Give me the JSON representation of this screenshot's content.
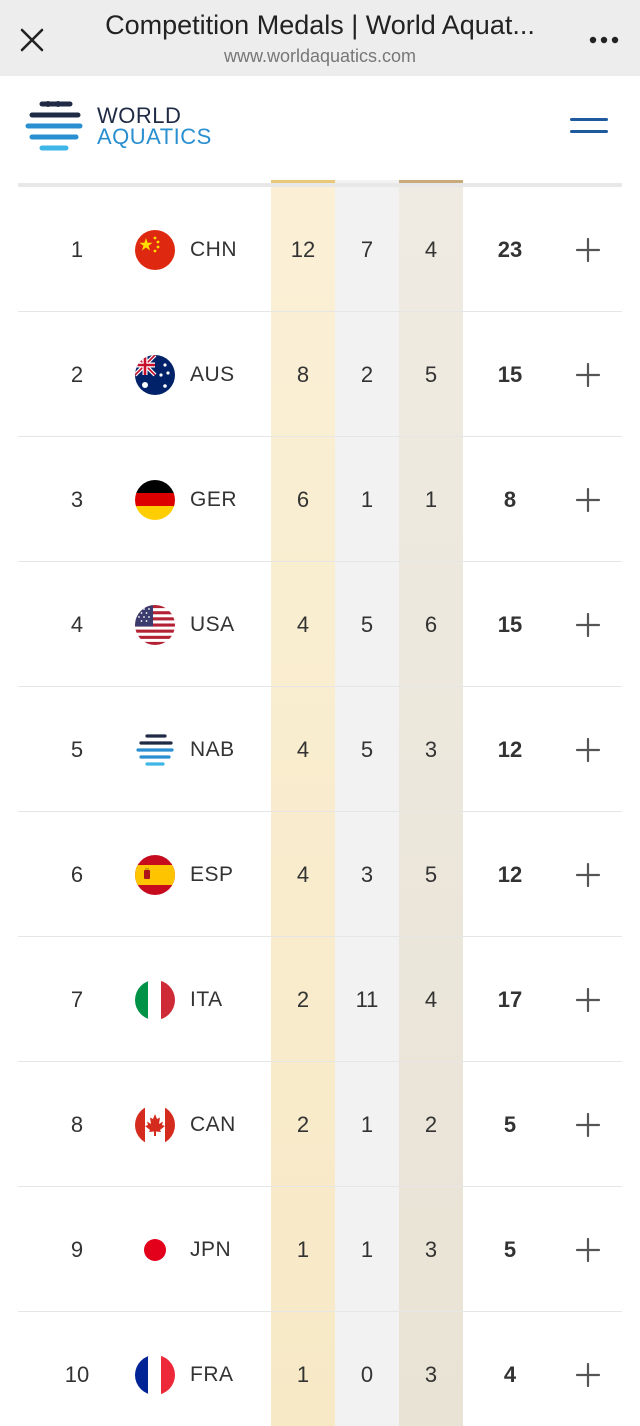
{
  "browser": {
    "title": "Competition Medals | World Aquat...",
    "url": "www.worldaquatics.com"
  },
  "site": {
    "logo_line1": "WORLD",
    "logo_line2": "AQUATICS"
  },
  "colors": {
    "gold_column": "#fbf0d6",
    "silver_column": "#f2f2f3",
    "bronze_column": "#efebe2",
    "brand_dark": "#1f2a44",
    "brand_blue": "#2a8fd0",
    "menu_icon": "#1f5a9e"
  },
  "medal_table": {
    "rows": [
      {
        "rank": "1",
        "flag_icon": "china-flag-icon",
        "code": "CHN",
        "gold": "12",
        "silver": "7",
        "bronze": "4",
        "total": "23"
      },
      {
        "rank": "2",
        "flag_icon": "australia-flag-icon",
        "code": "AUS",
        "gold": "8",
        "silver": "2",
        "bronze": "5",
        "total": "15"
      },
      {
        "rank": "3",
        "flag_icon": "germany-flag-icon",
        "code": "GER",
        "gold": "6",
        "silver": "1",
        "bronze": "1",
        "total": "8"
      },
      {
        "rank": "4",
        "flag_icon": "usa-flag-icon",
        "code": "USA",
        "gold": "4",
        "silver": "5",
        "bronze": "6",
        "total": "15"
      },
      {
        "rank": "5",
        "flag_icon": "world-aquatics-flag-icon",
        "code": "NAB",
        "gold": "4",
        "silver": "5",
        "bronze": "3",
        "total": "12"
      },
      {
        "rank": "6",
        "flag_icon": "spain-flag-icon",
        "code": "ESP",
        "gold": "4",
        "silver": "3",
        "bronze": "5",
        "total": "12"
      },
      {
        "rank": "7",
        "flag_icon": "italy-flag-icon",
        "code": "ITA",
        "gold": "2",
        "silver": "11",
        "bronze": "4",
        "total": "17"
      },
      {
        "rank": "8",
        "flag_icon": "canada-flag-icon",
        "code": "CAN",
        "gold": "2",
        "silver": "1",
        "bronze": "2",
        "total": "5"
      },
      {
        "rank": "9",
        "flag_icon": "japan-flag-icon",
        "code": "JPN",
        "gold": "1",
        "silver": "1",
        "bronze": "3",
        "total": "5"
      },
      {
        "rank": "10",
        "flag_icon": "france-flag-icon",
        "code": "FRA",
        "gold": "1",
        "silver": "0",
        "bronze": "3",
        "total": "4"
      }
    ],
    "expand_icon": "plus-icon"
  }
}
